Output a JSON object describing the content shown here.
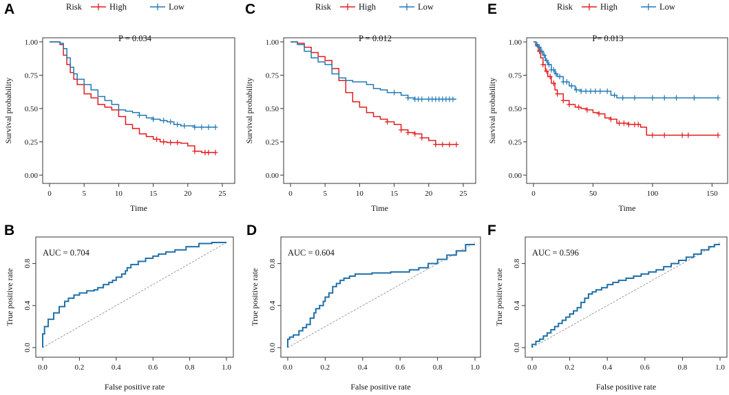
{
  "colors": {
    "high": "#e31a1c",
    "low": "#1f78b4",
    "roc": "#1f6fa8",
    "diag": "#9a9a9a",
    "axis": "#333333"
  },
  "chart_data": [
    {
      "panel": "A",
      "type": "line",
      "subtype": "kaplan-meier",
      "xlabel": "Time",
      "ylabel": "Survival probability",
      "xlim": [
        0,
        25
      ],
      "ylim": [
        0,
        1
      ],
      "xticks": [
        0,
        5,
        10,
        15,
        20,
        25
      ],
      "yticks": [
        "0.00",
        "0.25",
        "0.50",
        "0.75",
        "1.00"
      ],
      "annotation": "P = 0.034",
      "legend": {
        "title": "Risk",
        "labels": [
          "High",
          "Low"
        ]
      },
      "series": [
        {
          "name": "High",
          "x": [
            0,
            1.5,
            2,
            2.5,
            3,
            3.5,
            4,
            5,
            6,
            7,
            8,
            9,
            10,
            11,
            12,
            13,
            14,
            15,
            16,
            17,
            18,
            19,
            20,
            21,
            22,
            23,
            24
          ],
          "y": [
            1,
            0.98,
            0.9,
            0.83,
            0.77,
            0.72,
            0.68,
            0.61,
            0.58,
            0.53,
            0.51,
            0.49,
            0.44,
            0.38,
            0.35,
            0.31,
            0.29,
            0.27,
            0.25,
            0.245,
            0.245,
            0.24,
            0.22,
            0.18,
            0.17,
            0.17,
            0.17
          ],
          "censor_x": [
            15.5,
            16.5,
            17.5,
            18.5,
            21,
            22.5,
            23,
            24
          ]
        },
        {
          "name": "Low",
          "x": [
            0,
            1.5,
            2,
            2.5,
            3,
            3.5,
            4,
            5,
            6,
            7,
            8,
            9,
            10,
            11,
            12,
            13,
            14,
            15,
            16,
            17,
            18,
            19,
            20,
            21,
            22,
            23,
            24
          ],
          "y": [
            1,
            0.99,
            0.95,
            0.88,
            0.81,
            0.76,
            0.72,
            0.68,
            0.64,
            0.59,
            0.56,
            0.53,
            0.49,
            0.48,
            0.47,
            0.45,
            0.43,
            0.42,
            0.41,
            0.4,
            0.38,
            0.37,
            0.37,
            0.36,
            0.36,
            0.36,
            0.36
          ],
          "censor_x": [
            13,
            15,
            16.5,
            17.5,
            18.5,
            19.5,
            21,
            22,
            23,
            24
          ]
        }
      ]
    },
    {
      "panel": "C",
      "type": "line",
      "subtype": "kaplan-meier",
      "xlabel": "Time",
      "ylabel": "Survival probability",
      "xlim": [
        0,
        25
      ],
      "ylim": [
        0,
        1
      ],
      "xticks": [
        0,
        5,
        10,
        15,
        20,
        25
      ],
      "yticks": [
        "0.00",
        "0.25",
        "0.50",
        "0.75",
        "1.00"
      ],
      "annotation": "P = 0.012",
      "legend": {
        "title": "Risk",
        "labels": [
          "High",
          "Low"
        ]
      },
      "series": [
        {
          "name": "High",
          "x": [
            0,
            1,
            2,
            3,
            4,
            5,
            6,
            7,
            8,
            9,
            10,
            11,
            12,
            13,
            14,
            15,
            16,
            17,
            18,
            19,
            20,
            21,
            22,
            23,
            24
          ],
          "y": [
            1,
            0.99,
            0.96,
            0.92,
            0.89,
            0.86,
            0.8,
            0.71,
            0.62,
            0.55,
            0.51,
            0.47,
            0.44,
            0.42,
            0.4,
            0.38,
            0.34,
            0.32,
            0.31,
            0.28,
            0.26,
            0.23,
            0.23,
            0.23,
            0.23
          ],
          "censor_x": [
            14,
            16,
            17,
            18,
            19,
            21,
            22,
            23,
            24
          ]
        },
        {
          "name": "Low",
          "x": [
            0,
            1,
            2,
            3,
            4,
            5,
            6,
            7,
            8,
            9,
            10,
            11,
            12,
            13,
            14,
            15,
            16,
            17,
            18,
            19,
            20,
            21,
            22,
            23,
            24
          ],
          "y": [
            1,
            0.98,
            0.93,
            0.88,
            0.85,
            0.83,
            0.76,
            0.73,
            0.71,
            0.7,
            0.7,
            0.68,
            0.65,
            0.64,
            0.62,
            0.62,
            0.6,
            0.58,
            0.57,
            0.57,
            0.57,
            0.57,
            0.57,
            0.57,
            0.57
          ],
          "censor_x": [
            15,
            17,
            18,
            18.5,
            19,
            20,
            20.5,
            21,
            21.5,
            22,
            22.5,
            23,
            23.5
          ]
        }
      ]
    },
    {
      "panel": "E",
      "type": "line",
      "subtype": "kaplan-meier",
      "xlabel": "Time",
      "ylabel": "Survival probability",
      "xlim": [
        0,
        155
      ],
      "ylim": [
        0,
        1
      ],
      "xticks": [
        0,
        50,
        100,
        150
      ],
      "yticks": [
        "0.00",
        "0.25",
        "0.50",
        "0.75",
        "1.00"
      ],
      "annotation": "P= 0.013",
      "legend": {
        "title": "Risk",
        "labels": [
          "High",
          "Low"
        ]
      },
      "series": [
        {
          "name": "High",
          "x": [
            0,
            2,
            4,
            6,
            8,
            10,
            12,
            15,
            18,
            20,
            25,
            30,
            35,
            40,
            45,
            50,
            55,
            60,
            65,
            70,
            80,
            90,
            95,
            100,
            120,
            155
          ],
          "y": [
            1,
            0.97,
            0.93,
            0.88,
            0.83,
            0.78,
            0.74,
            0.69,
            0.64,
            0.61,
            0.56,
            0.53,
            0.51,
            0.5,
            0.49,
            0.47,
            0.46,
            0.43,
            0.42,
            0.39,
            0.38,
            0.36,
            0.3,
            0.3,
            0.3,
            0.3
          ],
          "censor_x": [
            5,
            8,
            11,
            14,
            17,
            20,
            25,
            30,
            38,
            45,
            55,
            65,
            72,
            76,
            80,
            85,
            88,
            100,
            110,
            125,
            130,
            155
          ]
        },
        {
          "name": "Low",
          "x": [
            0,
            2,
            4,
            6,
            8,
            10,
            12,
            15,
            18,
            20,
            25,
            30,
            35,
            40,
            45,
            50,
            55,
            60,
            65,
            70,
            80,
            90,
            100,
            120,
            155
          ],
          "y": [
            1,
            0.98,
            0.96,
            0.93,
            0.9,
            0.86,
            0.83,
            0.79,
            0.76,
            0.74,
            0.7,
            0.67,
            0.64,
            0.63,
            0.63,
            0.63,
            0.63,
            0.63,
            0.6,
            0.58,
            0.58,
            0.58,
            0.58,
            0.58,
            0.58
          ],
          "censor_x": [
            3,
            5,
            7,
            9,
            11,
            13,
            15,
            17,
            19,
            22,
            25,
            28,
            32,
            36,
            40,
            44,
            48,
            52,
            56,
            62,
            68,
            75,
            85,
            100,
            110,
            120,
            135,
            155
          ]
        }
      ]
    },
    {
      "panel": "B",
      "type": "line",
      "subtype": "roc",
      "xlabel": "False positive rate",
      "ylabel": "True positive rate",
      "xlim": [
        0,
        1
      ],
      "ylim": [
        0,
        1
      ],
      "xticks": [
        "0.0",
        "0.2",
        "0.4",
        "0.6",
        "0.8",
        "1.0"
      ],
      "yticks": [
        "0.0",
        "0.4",
        "0.8"
      ],
      "annotation": "AUC = 0.704",
      "series": [
        {
          "name": "ROC",
          "x": [
            0,
            0,
            0.01,
            0.01,
            0.03,
            0.03,
            0.06,
            0.06,
            0.09,
            0.09,
            0.12,
            0.12,
            0.14,
            0.17,
            0.2,
            0.24,
            0.28,
            0.3,
            0.33,
            0.36,
            0.38,
            0.4,
            0.43,
            0.45,
            0.46,
            0.48,
            0.52,
            0.56,
            0.6,
            0.63,
            0.67,
            0.72,
            0.78,
            0.85,
            0.92,
            1
          ],
          "y": [
            0,
            0.1,
            0.13,
            0.18,
            0.2,
            0.23,
            0.27,
            0.3,
            0.33,
            0.36,
            0.39,
            0.41,
            0.44,
            0.47,
            0.5,
            0.52,
            0.54,
            0.55,
            0.57,
            0.6,
            0.62,
            0.64,
            0.67,
            0.7,
            0.73,
            0.76,
            0.79,
            0.82,
            0.85,
            0.87,
            0.89,
            0.91,
            0.93,
            0.96,
            0.99,
            1
          ]
        }
      ]
    },
    {
      "panel": "D",
      "type": "line",
      "subtype": "roc",
      "xlabel": "False positive rate",
      "ylabel": "True positive rate",
      "xlim": [
        0,
        1
      ],
      "ylim": [
        0,
        1
      ],
      "xticks": [
        "0.0",
        "0.2",
        "0.4",
        "0.6",
        "0.8",
        "1.0"
      ],
      "yticks": [
        "0.0",
        "0.4",
        "0.8"
      ],
      "annotation": "AUC = 0.604",
      "series": [
        {
          "name": "ROC",
          "x": [
            0,
            0.01,
            0.03,
            0.06,
            0.08,
            0.1,
            0.12,
            0.14,
            0.15,
            0.17,
            0.19,
            0.2,
            0.22,
            0.24,
            0.26,
            0.28,
            0.3,
            0.33,
            0.36,
            0.4,
            0.45,
            0.5,
            0.55,
            0.6,
            0.65,
            0.7,
            0.75,
            0.8,
            0.85,
            0.9,
            0.95,
            1
          ],
          "y": [
            0,
            0.08,
            0.1,
            0.12,
            0.16,
            0.19,
            0.22,
            0.28,
            0.33,
            0.37,
            0.4,
            0.44,
            0.48,
            0.52,
            0.58,
            0.61,
            0.64,
            0.66,
            0.68,
            0.7,
            0.7,
            0.71,
            0.71,
            0.72,
            0.72,
            0.74,
            0.76,
            0.8,
            0.84,
            0.88,
            0.92,
            0.98
          ]
        }
      ]
    },
    {
      "panel": "F",
      "type": "line",
      "subtype": "roc",
      "xlabel": "False positive rate",
      "ylabel": "True positive rate",
      "xlim": [
        0,
        1
      ],
      "ylim": [
        0,
        1
      ],
      "xticks": [
        "0.0",
        "0.2",
        "0.4",
        "0.6",
        "0.8",
        "1.0"
      ],
      "yticks": [
        "0.0",
        "0.4",
        "0.8"
      ],
      "annotation": "AUC = 0.596",
      "series": [
        {
          "name": "ROC",
          "x": [
            0,
            0.02,
            0.04,
            0.06,
            0.08,
            0.1,
            0.12,
            0.14,
            0.16,
            0.18,
            0.2,
            0.22,
            0.24,
            0.26,
            0.28,
            0.3,
            0.32,
            0.34,
            0.37,
            0.4,
            0.43,
            0.46,
            0.5,
            0.54,
            0.58,
            0.62,
            0.66,
            0.7,
            0.74,
            0.78,
            0.82,
            0.86,
            0.9,
            0.94,
            0.97,
            1
          ],
          "y": [
            0,
            0.03,
            0.06,
            0.08,
            0.11,
            0.14,
            0.17,
            0.2,
            0.23,
            0.26,
            0.29,
            0.32,
            0.35,
            0.38,
            0.43,
            0.47,
            0.51,
            0.53,
            0.55,
            0.57,
            0.6,
            0.62,
            0.64,
            0.66,
            0.68,
            0.7,
            0.72,
            0.74,
            0.77,
            0.8,
            0.83,
            0.86,
            0.89,
            0.93,
            0.96,
            0.98
          ]
        }
      ]
    }
  ]
}
